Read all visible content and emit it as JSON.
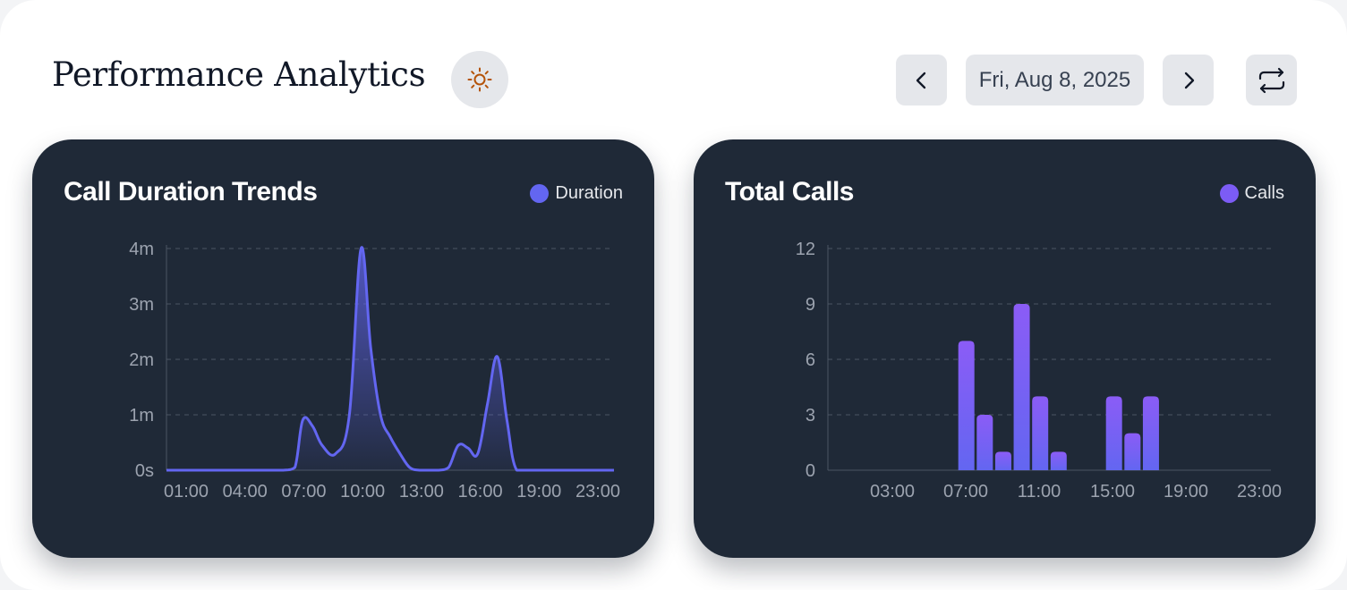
{
  "header": {
    "title": "Performance Analytics",
    "date_label": "Fri, Aug 8, 2025",
    "theme_icon": "sun-icon",
    "prev_icon": "chevron-left-icon",
    "next_icon": "chevron-right-icon",
    "refresh_icon": "refresh-icon"
  },
  "colors": {
    "card_bg": "#1f2937",
    "accent": "#6366f1",
    "bar_top": "#8b5cf6",
    "bar_bottom": "#6366f1",
    "grid": "#4b5563",
    "tick": "#9ca3af",
    "sun": "#b45309"
  },
  "chart_data": [
    {
      "type": "area",
      "title": "Call Duration Trends",
      "legend": "Duration",
      "x": [
        0,
        1,
        2,
        3,
        4,
        5,
        6,
        6.6,
        7,
        7.5,
        8,
        8.7,
        9.4,
        10,
        10.5,
        11,
        11.5,
        12,
        12.5,
        13,
        13.5,
        14,
        14.5,
        15,
        15.5,
        16,
        16.5,
        17,
        17.5,
        18,
        19,
        20,
        21,
        22,
        23
      ],
      "values": [
        0,
        0,
        0,
        0,
        0,
        0,
        0,
        0.05,
        0.9,
        0.8,
        0.45,
        0.3,
        1.0,
        4.0,
        2.2,
        1.0,
        0.6,
        0.3,
        0.05,
        0,
        0,
        0,
        0.05,
        0.45,
        0.4,
        0.3,
        1.2,
        2.05,
        0.9,
        0,
        0,
        0,
        0,
        0,
        0
      ],
      "y_unit": "m",
      "ylim": [
        0,
        4
      ],
      "y_ticks": [
        "0s",
        "1m",
        "2m",
        "3m",
        "4m"
      ],
      "x_tick_labels": [
        "01:00",
        "04:00",
        "07:00",
        "10:00",
        "13:00",
        "16:00",
        "19:00",
        "23:00"
      ],
      "grid": true,
      "legend_position": "top-right"
    },
    {
      "type": "bar",
      "title": "Total Calls",
      "legend": "Calls",
      "categories": [
        "07:00",
        "08:00",
        "09:00",
        "10:00",
        "11:00",
        "12:00",
        "15:00",
        "16:00",
        "17:00"
      ],
      "hours": [
        7,
        8,
        9,
        10,
        11,
        12,
        15,
        16,
        17
      ],
      "values": [
        7,
        3,
        1,
        9,
        4,
        1,
        4,
        2,
        4
      ],
      "ylim": [
        0,
        12
      ],
      "y_ticks": [
        "0",
        "3",
        "6",
        "9",
        "12"
      ],
      "x_tick_labels": [
        "03:00",
        "07:00",
        "11:00",
        "15:00",
        "19:00",
        "23:00"
      ],
      "grid": true,
      "legend_position": "top-right"
    }
  ]
}
